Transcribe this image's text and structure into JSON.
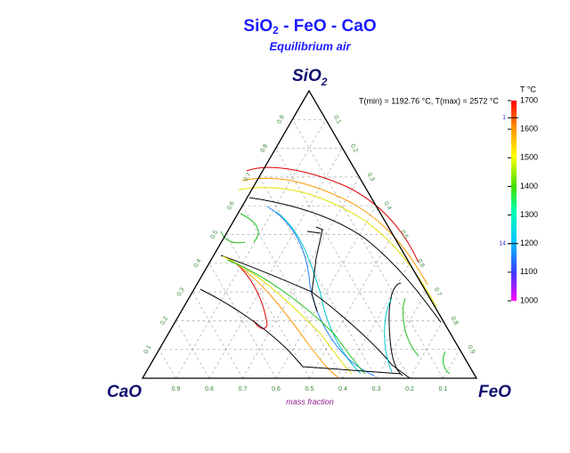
{
  "title": {
    "text": "SiO",
    "sub": "2",
    "rest": " - FeO - CaO"
  },
  "subtitle": "Equilibrium air",
  "chart_data": {
    "type": "ternary",
    "vertices": {
      "top": {
        "text": "SiO",
        "sub": "2"
      },
      "left": "CaO",
      "right": "FeO"
    },
    "ticks": [
      0.1,
      0.2,
      0.3,
      0.4,
      0.5,
      0.6,
      0.7,
      0.8,
      0.9
    ],
    "grid": true,
    "axis_label": "mass fraction",
    "note": "T(min) = 1192.76 °C, T(max) = 2572 °C",
    "colorbar": {
      "title": "T °C",
      "lim": [
        1000,
        1700
      ],
      "ticks": [
        1000,
        1100,
        1200,
        1300,
        1400,
        1500,
        1600,
        1700
      ],
      "marks": [
        {
          "label": "1",
          "value": 1640
        },
        {
          "label": "14",
          "value": 1200
        }
      ]
    }
  }
}
